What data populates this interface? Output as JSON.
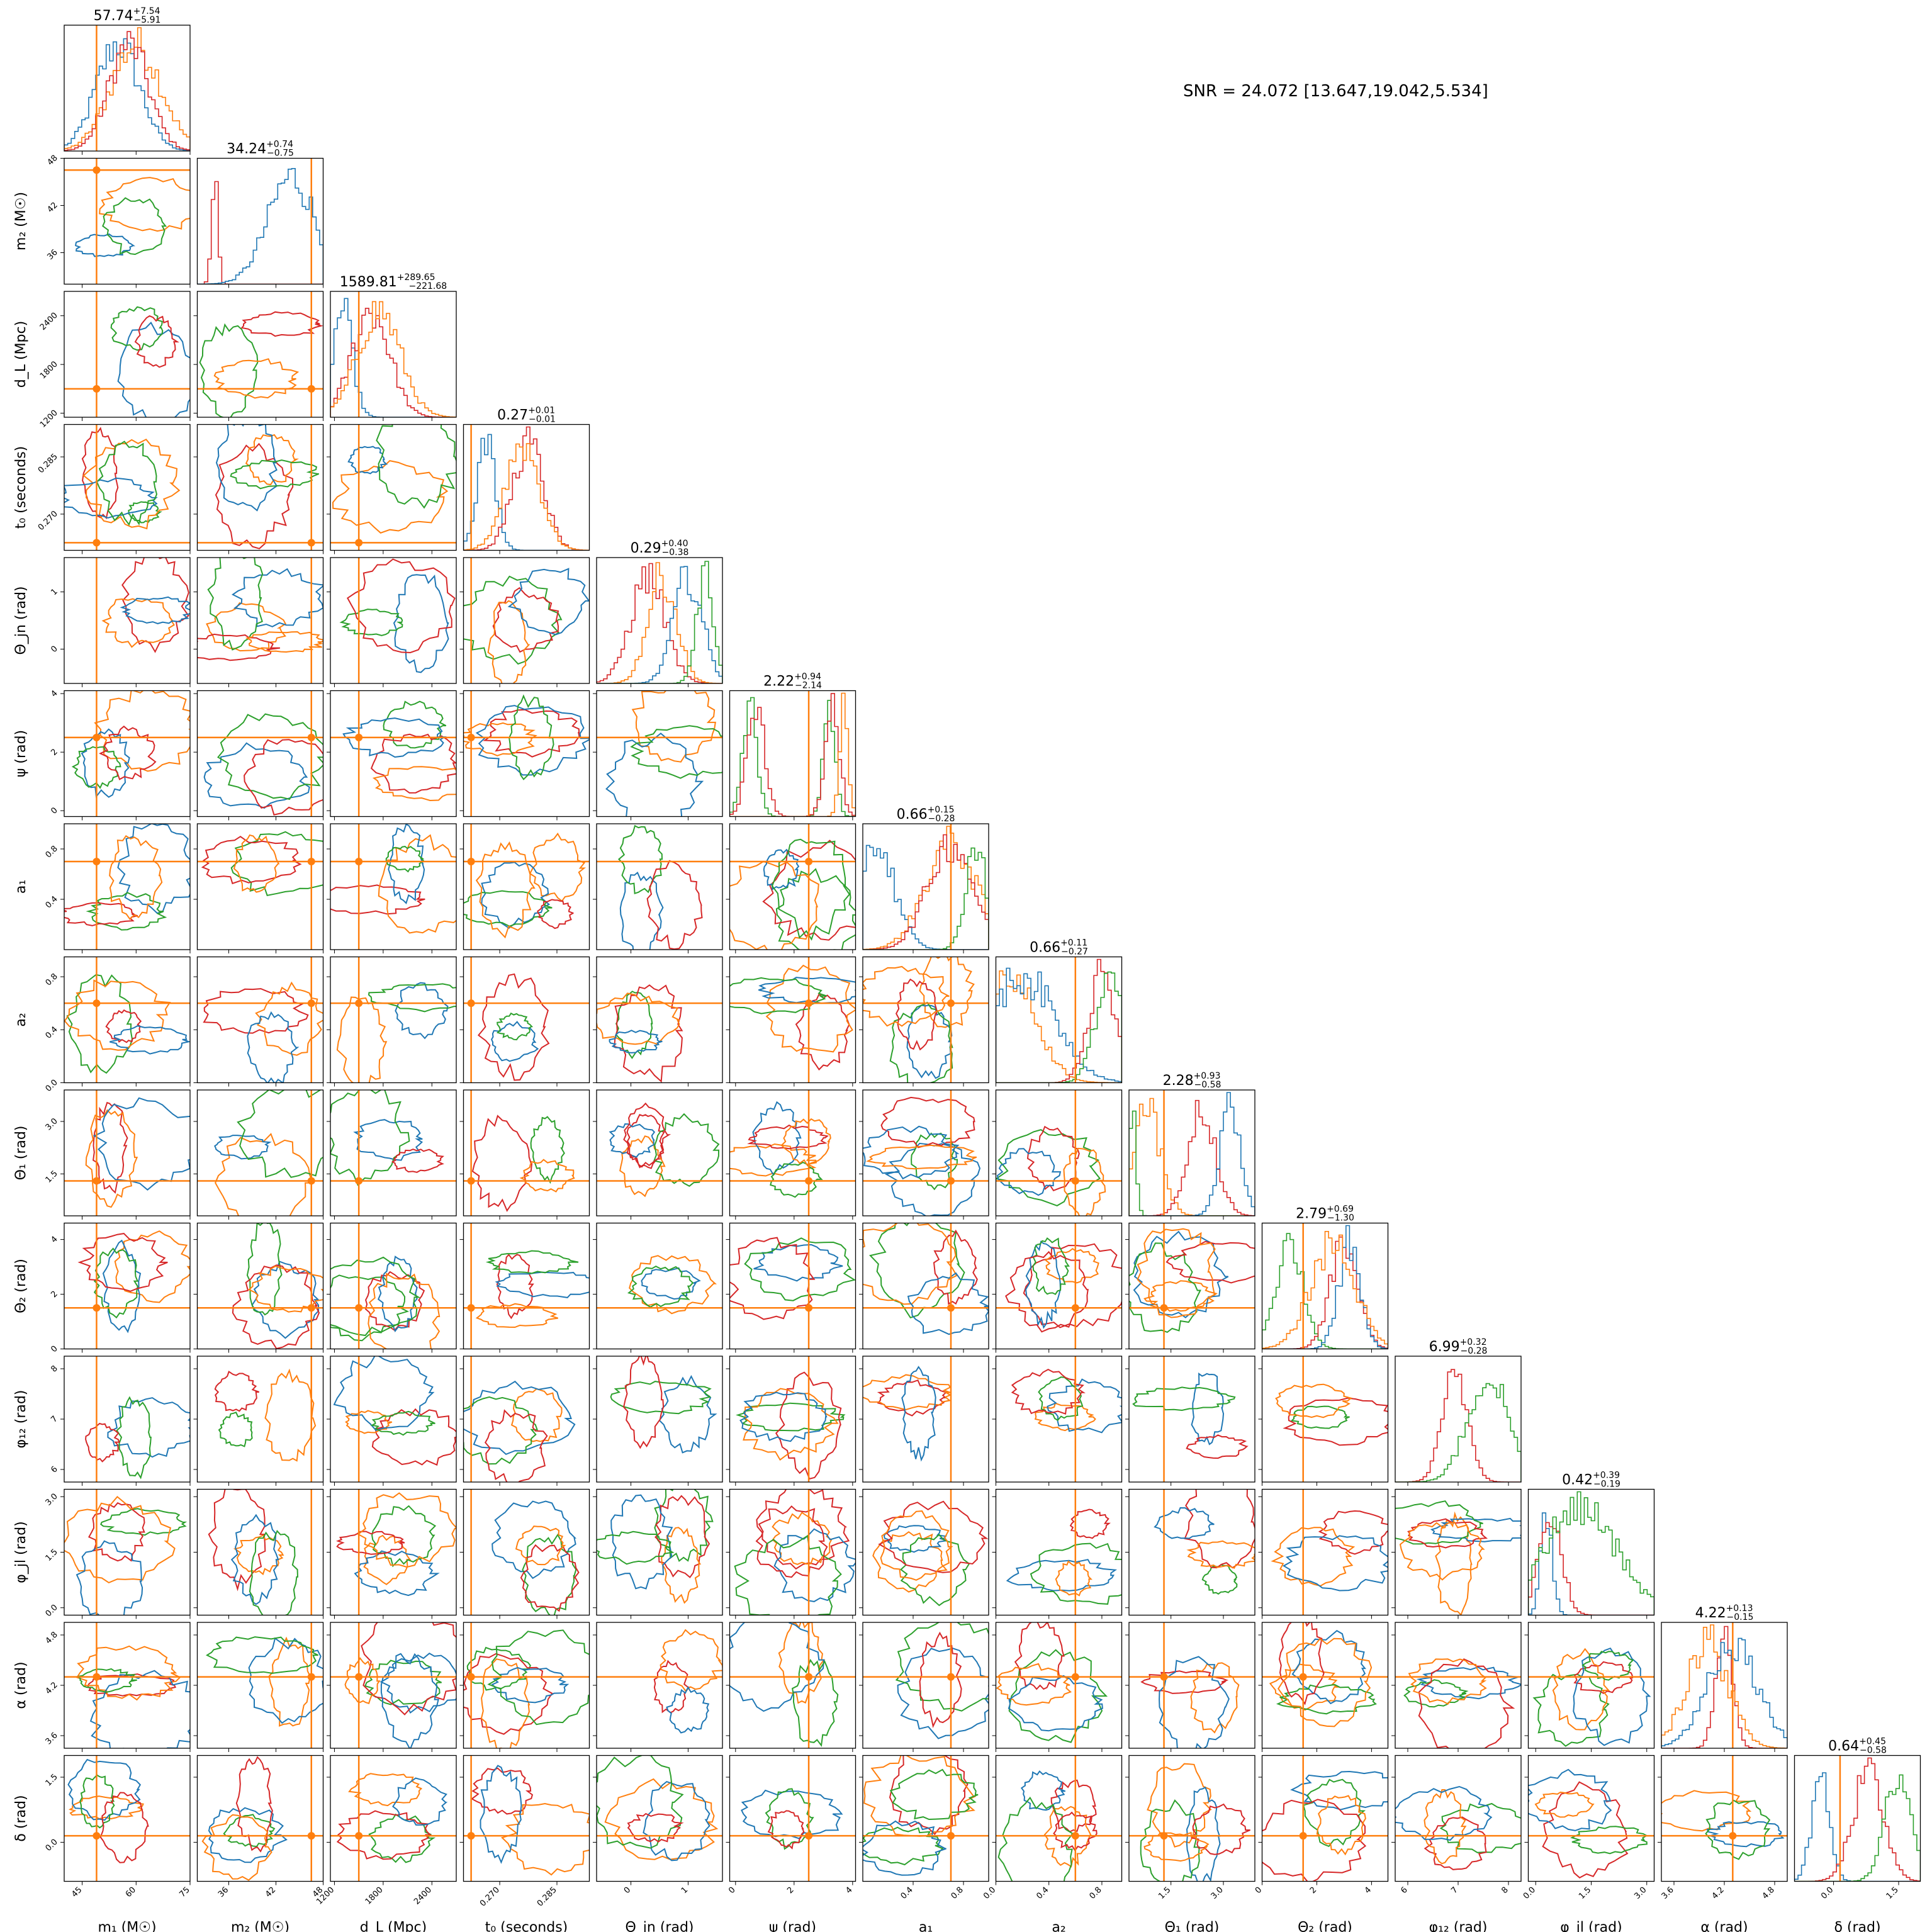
{
  "snr_text": "SNR = 24.072 [13.647,19.042,5.534]",
  "chart_data": {
    "type": "corner",
    "colors": {
      "blue": "#1f77b4",
      "orange": "#ff7f0e",
      "green": "#2ca02c",
      "red": "#d62728",
      "truth": "#ff7f0e"
    },
    "parameters": [
      {
        "key": "m1",
        "label": "m₁ (M☉)",
        "range": [
          40,
          75
        ],
        "ticks": [
          45,
          60,
          75
        ],
        "truth": 49,
        "title_value": "57.74",
        "title_plus": "+7.54",
        "title_minus": "−5.91"
      },
      {
        "key": "m2",
        "label": "m₂ (M☉)",
        "range": [
          32,
          48
        ],
        "ticks": [
          36,
          42,
          48
        ],
        "truth": 46.5,
        "title_value": "34.24",
        "title_plus": "+0.74",
        "title_minus": "−0.75"
      },
      {
        "key": "dL",
        "label": "d_L (Mpc)",
        "range": [
          1150,
          2700
        ],
        "ticks": [
          1200,
          1800,
          2400
        ],
        "truth": 1500,
        "title_value": "1589.81",
        "title_plus": "+289.65",
        "title_minus": "−221.68"
      },
      {
        "key": "t0",
        "label": "t₀ (seconds)",
        "range": [
          0.2605,
          0.2935
        ],
        "ticks": [
          0.27,
          0.285
        ],
        "ticklabels": [
          "0.270",
          "0.285"
        ],
        "truth": 0.2625,
        "title_value": "0.27",
        "title_plus": "+0.01",
        "title_minus": "−0.01"
      },
      {
        "key": "theta_jn",
        "label": "Θ_jn (rad)",
        "range": [
          -0.6,
          1.6
        ],
        "ticks": [
          0,
          1
        ],
        "truth": null,
        "title_value": "0.29",
        "title_plus": "+0.40",
        "title_minus": "−0.38"
      },
      {
        "key": "psi",
        "label": "ψ (rad)",
        "range": [
          -0.2,
          4.1
        ],
        "ticks": [
          0,
          2,
          4
        ],
        "truth": 2.5,
        "title_value": "2.22",
        "title_plus": "+0.94",
        "title_minus": "−2.14"
      },
      {
        "key": "a1",
        "label": "a₁",
        "range": [
          0,
          1
        ],
        "ticks": [
          0.4,
          0.8
        ],
        "truth": 0.7,
        "title_value": "0.66",
        "title_plus": "+0.15",
        "title_minus": "−0.28"
      },
      {
        "key": "a2",
        "label": "a₂",
        "range": [
          0,
          0.95
        ],
        "ticks": [
          0,
          0.4,
          0.8
        ],
        "ticklabels": [
          "0.0",
          "0.4",
          "0.8"
        ],
        "truth": 0.6,
        "title_value": "0.66",
        "title_plus": "+0.11",
        "title_minus": "−0.27"
      },
      {
        "key": "theta1",
        "label": "Θ₁ (rad)",
        "range": [
          0.3,
          3.9
        ],
        "ticks": [
          1.5,
          3
        ],
        "ticklabels": [
          "1.5",
          "3.0"
        ],
        "truth": 1.3,
        "title_value": "2.28",
        "title_plus": "+0.93",
        "title_minus": "−0.58"
      },
      {
        "key": "theta2",
        "label": "Θ₂ (rad)",
        "range": [
          0,
          4.6
        ],
        "ticks": [
          0,
          2,
          4
        ],
        "truth": 1.5,
        "title_value": "2.79",
        "title_plus": "+0.69",
        "title_minus": "−1.30"
      },
      {
        "key": "phi12",
        "label": "φ₁₂ (rad)",
        "range": [
          5.75,
          8.25
        ],
        "ticks": [
          6,
          7,
          8
        ],
        "truth": null,
        "title_value": "6.99",
        "title_plus": "+0.32",
        "title_minus": "−0.28"
      },
      {
        "key": "phi_jl",
        "label": "φ_jl (rad)",
        "range": [
          -0.2,
          3.2
        ],
        "ticks": [
          0,
          1.5,
          3
        ],
        "ticklabels": [
          "0.0",
          "1.5",
          "3.0"
        ],
        "truth": null,
        "title_value": "0.42",
        "title_plus": "+0.39",
        "title_minus": "−0.19"
      },
      {
        "key": "alpha",
        "label": "α (rad)",
        "range": [
          3.45,
          4.95
        ],
        "ticks": [
          3.6,
          4.2,
          4.8
        ],
        "truth": 4.3,
        "title_value": "4.22",
        "title_plus": "+0.13",
        "title_minus": "−0.15"
      },
      {
        "key": "delta",
        "label": "δ (rad)",
        "range": [
          -0.9,
          2.0
        ],
        "ticks": [
          0,
          1.5
        ],
        "ticklabels": [
          "0.0",
          "1.5"
        ],
        "truth": 0.15,
        "title_value": "0.64",
        "title_plus": "+0.45",
        "title_minus": "−0.58"
      }
    ],
    "histograms": {
      "m1": [
        {
          "color": "blue",
          "mean": 55,
          "sd": 6
        },
        {
          "color": "orange",
          "mean": 60,
          "sd": 7
        },
        {
          "color": "red",
          "mean": 58,
          "sd": 5.5
        }
      ],
      "m2": [
        {
          "color": "red",
          "mean": 34.2,
          "sd": 0.4
        },
        {
          "color": "blue",
          "mean": 44,
          "sd": 3
        }
      ],
      "dL": [
        {
          "color": "blue",
          "mean": 1300,
          "sd": 120
        },
        {
          "color": "red",
          "mean": 1650,
          "sd": 230
        },
        {
          "color": "orange",
          "mean": 1750,
          "sd": 260
        }
      ],
      "t0": [
        {
          "color": "blue",
          "mean": 0.2665,
          "sd": 0.0025
        },
        {
          "color": "red",
          "mean": 0.2775,
          "sd": 0.004
        },
        {
          "color": "orange",
          "mean": 0.276,
          "sd": 0.0045
        }
      ],
      "theta_jn": [
        {
          "color": "red",
          "mean": 0.3,
          "sd": 0.3
        },
        {
          "color": "orange",
          "mean": 0.55,
          "sd": 0.25
        },
        {
          "color": "blue",
          "mean": 1.0,
          "sd": 0.25
        },
        {
          "color": "green",
          "mean": 1.3,
          "sd": 0.15
        }
      ],
      "psi": [
        {
          "color": "green",
          "mean": 0.5,
          "sd": 0.25,
          "mean2": 3.2,
          "sd2": 0.2
        },
        {
          "color": "red",
          "mean": 0.7,
          "sd": 0.3,
          "mean2": 3.3,
          "sd2": 0.25
        },
        {
          "color": "orange",
          "mean": 3.7,
          "sd": 0.15
        }
      ],
      "a1": [
        {
          "color": "blue",
          "mean": 0.1,
          "sd": 0.15
        },
        {
          "color": "orange",
          "mean": 0.7,
          "sd": 0.2
        },
        {
          "color": "red",
          "mean": 0.7,
          "sd": 0.18
        },
        {
          "color": "green",
          "mean": 0.9,
          "sd": 0.08
        }
      ],
      "a2": [
        {
          "color": "orange",
          "mean": 0.1,
          "sd": 0.2
        },
        {
          "color": "blue",
          "mean": 0.2,
          "sd": 0.25
        },
        {
          "color": "red",
          "mean": 0.8,
          "sd": 0.1
        },
        {
          "color": "green",
          "mean": 0.85,
          "sd": 0.1
        }
      ],
      "theta1": [
        {
          "color": "orange",
          "mean": 0.8,
          "sd": 0.4
        },
        {
          "color": "green",
          "mean": 0.4,
          "sd": 0.1
        },
        {
          "color": "red",
          "mean": 2.4,
          "sd": 0.4
        },
        {
          "color": "blue",
          "mean": 3.2,
          "sd": 0.3
        }
      ],
      "theta2": [
        {
          "color": "green",
          "mean": 1.0,
          "sd": 0.5
        },
        {
          "color": "red",
          "mean": 3.0,
          "sd": 0.5
        },
        {
          "color": "blue",
          "mean": 3.2,
          "sd": 0.4
        },
        {
          "color": "orange",
          "mean": 2.6,
          "sd": 0.8
        }
      ],
      "phi12": [
        {
          "color": "red",
          "mean": 6.95,
          "sd": 0.25
        },
        {
          "color": "green",
          "mean": 7.6,
          "sd": 0.4
        }
      ],
      "phi_jl": [
        {
          "color": "blue",
          "mean": 0.3,
          "sd": 0.15
        },
        {
          "color": "red",
          "mean": 0.4,
          "sd": 0.3
        },
        {
          "color": "green",
          "mean": 1.2,
          "sd": 1.0
        }
      ],
      "alpha": [
        {
          "color": "red",
          "mean": 4.2,
          "sd": 0.1
        },
        {
          "color": "orange",
          "mean": 4.0,
          "sd": 0.25
        },
        {
          "color": "blue",
          "mean": 4.3,
          "sd": 0.3
        }
      ],
      "delta": [
        {
          "color": "blue",
          "mean": -0.3,
          "sd": 0.2
        },
        {
          "color": "red",
          "mean": 0.8,
          "sd": 0.35
        },
        {
          "color": "green",
          "mean": 1.5,
          "sd": 0.3
        }
      ]
    }
  }
}
